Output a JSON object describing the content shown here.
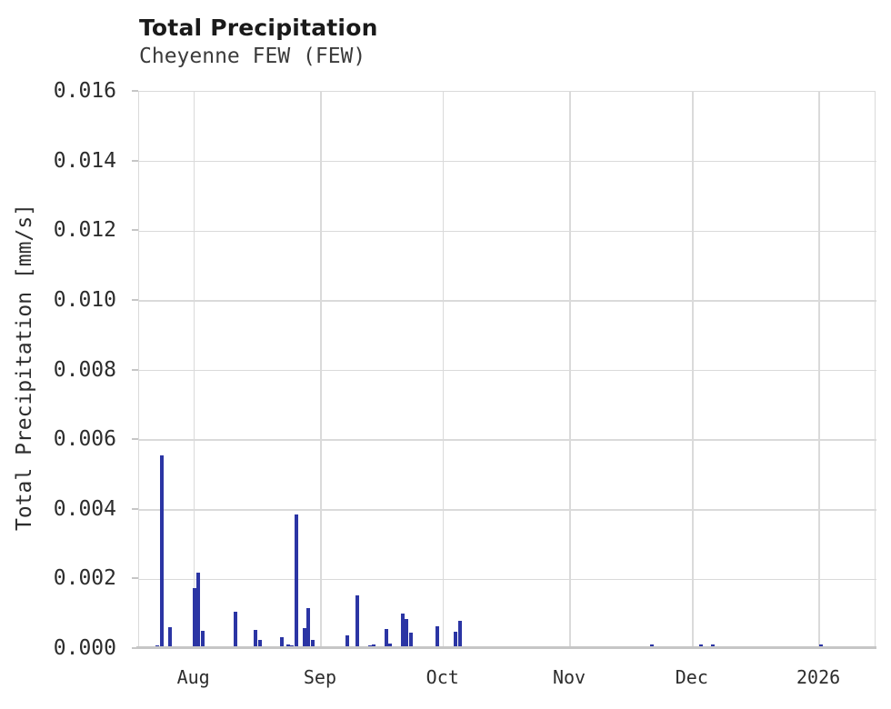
{
  "header": {
    "title": "Total Precipitation",
    "subtitle": "Cheyenne FEW (FEW)"
  },
  "colors": {
    "bar": "#2b35a4",
    "grid": "#dadada",
    "axis_line": "#c6c6c6",
    "tick_text": "#2d2d2d",
    "title_text": "#1a1a1a",
    "subtitle_text": "#3b3b3b",
    "background": "#ffffff"
  },
  "chart_data": {
    "type": "bar",
    "title": "Total Precipitation",
    "subtitle": "Cheyenne FEW (FEW)",
    "xlabel": "",
    "ylabel": "Total Precipitation [mm/s]",
    "units": "mm/s",
    "grid": true,
    "legend": false,
    "bar_color": "#2b35a4",
    "x_axis": {
      "start": "2025-07-18T12:00:00",
      "end": "2026-01-15T00:00:00",
      "ticks": [
        {
          "label": "Aug",
          "date": "2025-08-01"
        },
        {
          "label": "Sep",
          "date": "2025-09-01"
        },
        {
          "label": "Oct",
          "date": "2025-10-01"
        },
        {
          "label": "Nov",
          "date": "2025-11-01"
        },
        {
          "label": "Dec",
          "date": "2025-12-01"
        },
        {
          "label": "2026",
          "date": "2026-01-01"
        }
      ]
    },
    "y_axis": {
      "min": 0,
      "max": 0.016,
      "tick_labels": [
        "0.000",
        "0.002",
        "0.004",
        "0.006",
        "0.008",
        "0.010",
        "0.012",
        "0.014",
        "0.016"
      ]
    },
    "bars": [
      {
        "t": "2025-07-19",
        "v": 7e-05
      },
      {
        "t": "2025-07-23",
        "v": 0.0001
      },
      {
        "t": "2025-07-24",
        "v": 0.00555
      },
      {
        "t": "2025-07-26",
        "v": 0.00062
      },
      {
        "t": "2025-07-29T12:00:00",
        "v": 6e-05
      },
      {
        "t": "2025-08-01",
        "v": 0.00175
      },
      {
        "t": "2025-08-02",
        "v": 0.0022
      },
      {
        "t": "2025-08-03",
        "v": 0.00053
      },
      {
        "t": "2025-08-11",
        "v": 0.00106
      },
      {
        "t": "2025-08-16",
        "v": 0.00055
      },
      {
        "t": "2025-08-17",
        "v": 0.00025
      },
      {
        "t": "2025-08-19",
        "v": 5e-05
      },
      {
        "t": "2025-08-22T12:00:00",
        "v": 0.00035
      },
      {
        "t": "2025-08-24",
        "v": 0.00012
      },
      {
        "t": "2025-08-25",
        "v": 0.0001
      },
      {
        "t": "2025-08-26",
        "v": 0.00385
      },
      {
        "t": "2025-08-28",
        "v": 0.0006
      },
      {
        "t": "2025-08-29",
        "v": 0.00117
      },
      {
        "t": "2025-08-30",
        "v": 0.00026
      },
      {
        "t": "2025-09-07T12:00:00",
        "v": 0.0004
      },
      {
        "t": "2025-09-10",
        "v": 0.00155
      },
      {
        "t": "2025-09-13",
        "v": 0.0001
      },
      {
        "t": "2025-09-14",
        "v": 0.00014
      },
      {
        "t": "2025-09-17",
        "v": 0.00057
      },
      {
        "t": "2025-09-18",
        "v": 0.00015
      },
      {
        "t": "2025-09-20",
        "v": 5e-05
      },
      {
        "t": "2025-09-21",
        "v": 0.00101
      },
      {
        "t": "2025-09-22",
        "v": 0.00087
      },
      {
        "t": "2025-09-23",
        "v": 0.00046
      },
      {
        "t": "2025-09-29T12:00:00",
        "v": 0.00064
      },
      {
        "t": "2025-10-04",
        "v": 0.0005
      },
      {
        "t": "2025-10-05",
        "v": 0.00081
      },
      {
        "t": "2025-10-11",
        "v": 5e-05
      },
      {
        "t": "2025-10-16",
        "v": 7e-05
      },
      {
        "t": "2025-11-21",
        "v": 0.00012
      },
      {
        "t": "2025-12-03",
        "v": 0.00012
      },
      {
        "t": "2025-12-06",
        "v": 0.00012
      },
      {
        "t": "2025-12-10",
        "v": 6e-05
      },
      {
        "t": "2025-12-17T12:00:00",
        "v": 6e-05
      },
      {
        "t": "2026-01-01T12:00:00",
        "v": 0.00012
      }
    ]
  }
}
